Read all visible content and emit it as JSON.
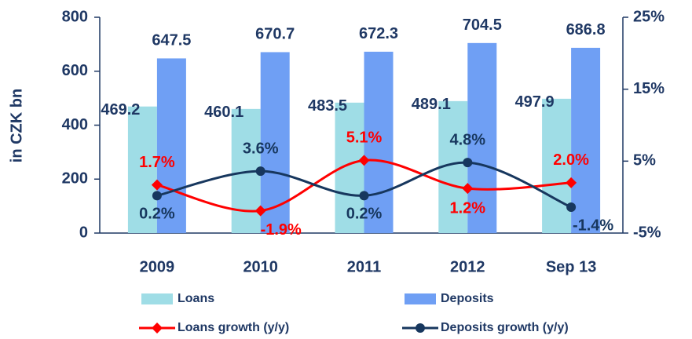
{
  "chart_data": {
    "type": "bar",
    "y_label": "in CZK bn",
    "categories": [
      "2009",
      "2010",
      "2011",
      "2012",
      "Sep 13"
    ],
    "series": [
      {
        "name": "Loans",
        "type": "bar",
        "color": "#9fdde6",
        "values": [
          469.2,
          460.1,
          483.5,
          489.1,
          497.9
        ]
      },
      {
        "name": "Deposits",
        "type": "bar",
        "color": "#6f9ff4",
        "values": [
          647.5,
          670.7,
          672.3,
          704.5,
          686.8
        ]
      },
      {
        "name": "Loans growth (y/y)",
        "type": "line",
        "axis": "y2",
        "marker": "diamond",
        "color": "#ff0000",
        "values": [
          1.7,
          -1.9,
          5.1,
          1.2,
          2.0
        ],
        "value_labels": [
          "1.7%",
          "-1.9%",
          "5.1%",
          "1.2%",
          "2.0%"
        ]
      },
      {
        "name": "Deposits growth (y/y)",
        "type": "line",
        "axis": "y2",
        "marker": "circle",
        "color": "#17375e",
        "values": [
          0.2,
          3.6,
          0.2,
          4.8,
          -1.4
        ],
        "value_labels": [
          "0.2%",
          "3.6%",
          "0.2%",
          "4.8%",
          "-1.4%"
        ]
      }
    ],
    "ylim": [
      0,
      800
    ],
    "yticks": [
      0,
      200,
      400,
      600,
      800
    ],
    "y2lim": [
      -5,
      25
    ],
    "y2ticks": [
      {
        "value": -5,
        "label": "-5%"
      },
      {
        "value": 5,
        "label": "5%"
      },
      {
        "value": 15,
        "label": "15%"
      },
      {
        "value": 25,
        "label": "25%"
      }
    ],
    "legend": "bottom"
  }
}
